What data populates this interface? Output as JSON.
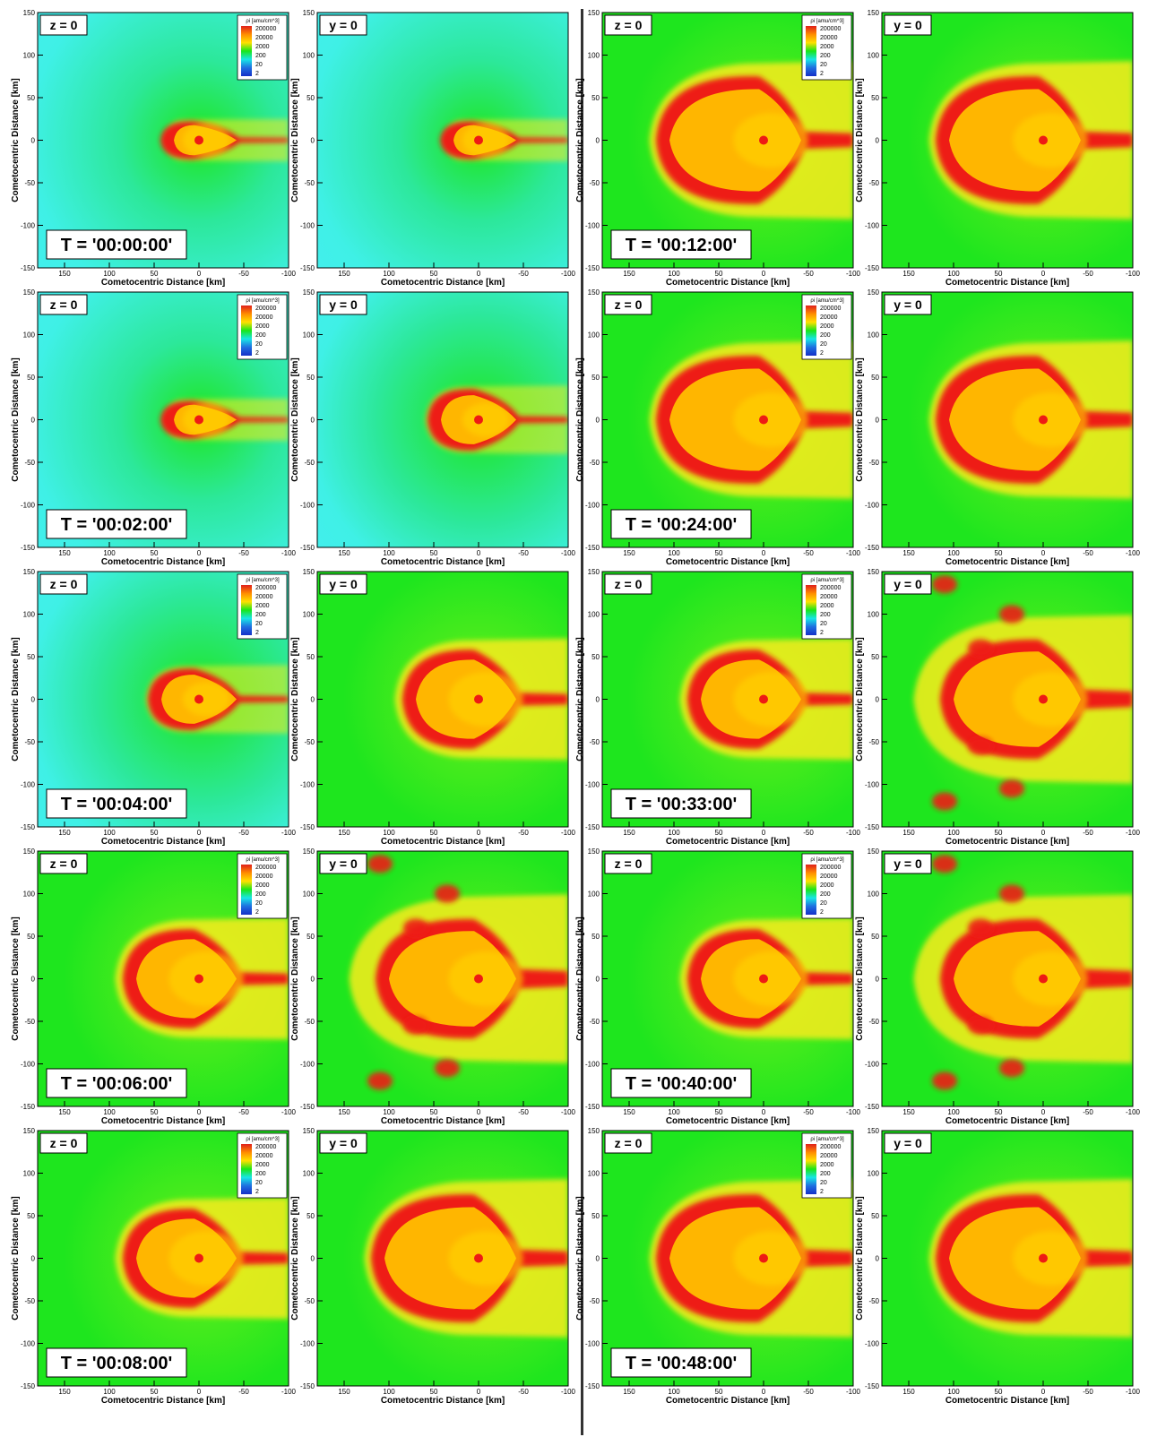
{
  "figure": {
    "panels": [
      {
        "plane": "z = 0",
        "time": "T = '00:00:00'",
        "legend": true
      },
      {
        "plane": "y = 0",
        "time": "",
        "legend": false
      },
      {
        "plane": "z = 0",
        "time": "T = '00:12:00'",
        "legend": true
      },
      {
        "plane": "y = 0",
        "time": "",
        "legend": false
      },
      {
        "plane": "z = 0",
        "time": "T = '00:02:00'",
        "legend": true
      },
      {
        "plane": "y = 0",
        "time": "",
        "legend": false
      },
      {
        "plane": "z = 0",
        "time": "T = '00:24:00'",
        "legend": true
      },
      {
        "plane": "y = 0",
        "time": "",
        "legend": false
      },
      {
        "plane": "z = 0",
        "time": "T = '00:04:00'",
        "legend": true
      },
      {
        "plane": "y = 0",
        "time": "",
        "legend": false
      },
      {
        "plane": "z = 0",
        "time": "T = '00:33:00'",
        "legend": true
      },
      {
        "plane": "y = 0",
        "time": "",
        "legend": false
      },
      {
        "plane": "z = 0",
        "time": "T = '00:06:00'",
        "legend": true
      },
      {
        "plane": "y = 0",
        "time": "",
        "legend": false
      },
      {
        "plane": "z = 0",
        "time": "T = '00:40:00'",
        "legend": true
      },
      {
        "plane": "y = 0",
        "time": "",
        "legend": false
      },
      {
        "plane": "z = 0",
        "time": "T = '00:08:00'",
        "legend": true
      },
      {
        "plane": "y = 0",
        "time": "",
        "legend": false
      },
      {
        "plane": "z = 0",
        "time": "T = '00:48:00'",
        "legend": true
      },
      {
        "plane": "y = 0",
        "time": "",
        "legend": false
      }
    ]
  },
  "chart_data": {
    "type": "heatmap",
    "xlabel": "Cometocentric Distance [km]",
    "ylabel": "Cometocentric Distance [km]",
    "xlim": [
      180,
      -100
    ],
    "ylim": [
      -150,
      150
    ],
    "x_ticks": [
      "150",
      "100",
      "50",
      "0",
      "-50",
      "-100"
    ],
    "x_tick_values": [
      150,
      100,
      50,
      0,
      -50,
      -100
    ],
    "y_ticks": [
      "-150",
      "-100",
      "-50",
      "0",
      "50",
      "100",
      "150"
    ],
    "y_tick_values": [
      -150,
      -100,
      -50,
      0,
      50,
      100,
      150
    ],
    "colorbar": {
      "title": "ρi [amu/cm^3]",
      "labels": [
        "200000",
        "20000",
        "2000",
        "200",
        "20",
        "2"
      ],
      "colors": [
        "#e0201a",
        "#ff8c00",
        "#ffe000",
        "#19e619",
        "#18e6e6",
        "#1f6fe0",
        "#1530c8"
      ]
    },
    "colors": {
      "background_cyan": "#3ff0e6",
      "background_green": "#1ee61e",
      "yellow": "#f8ec1a",
      "orange": "#ffaa00",
      "red": "#ee1a14"
    }
  }
}
